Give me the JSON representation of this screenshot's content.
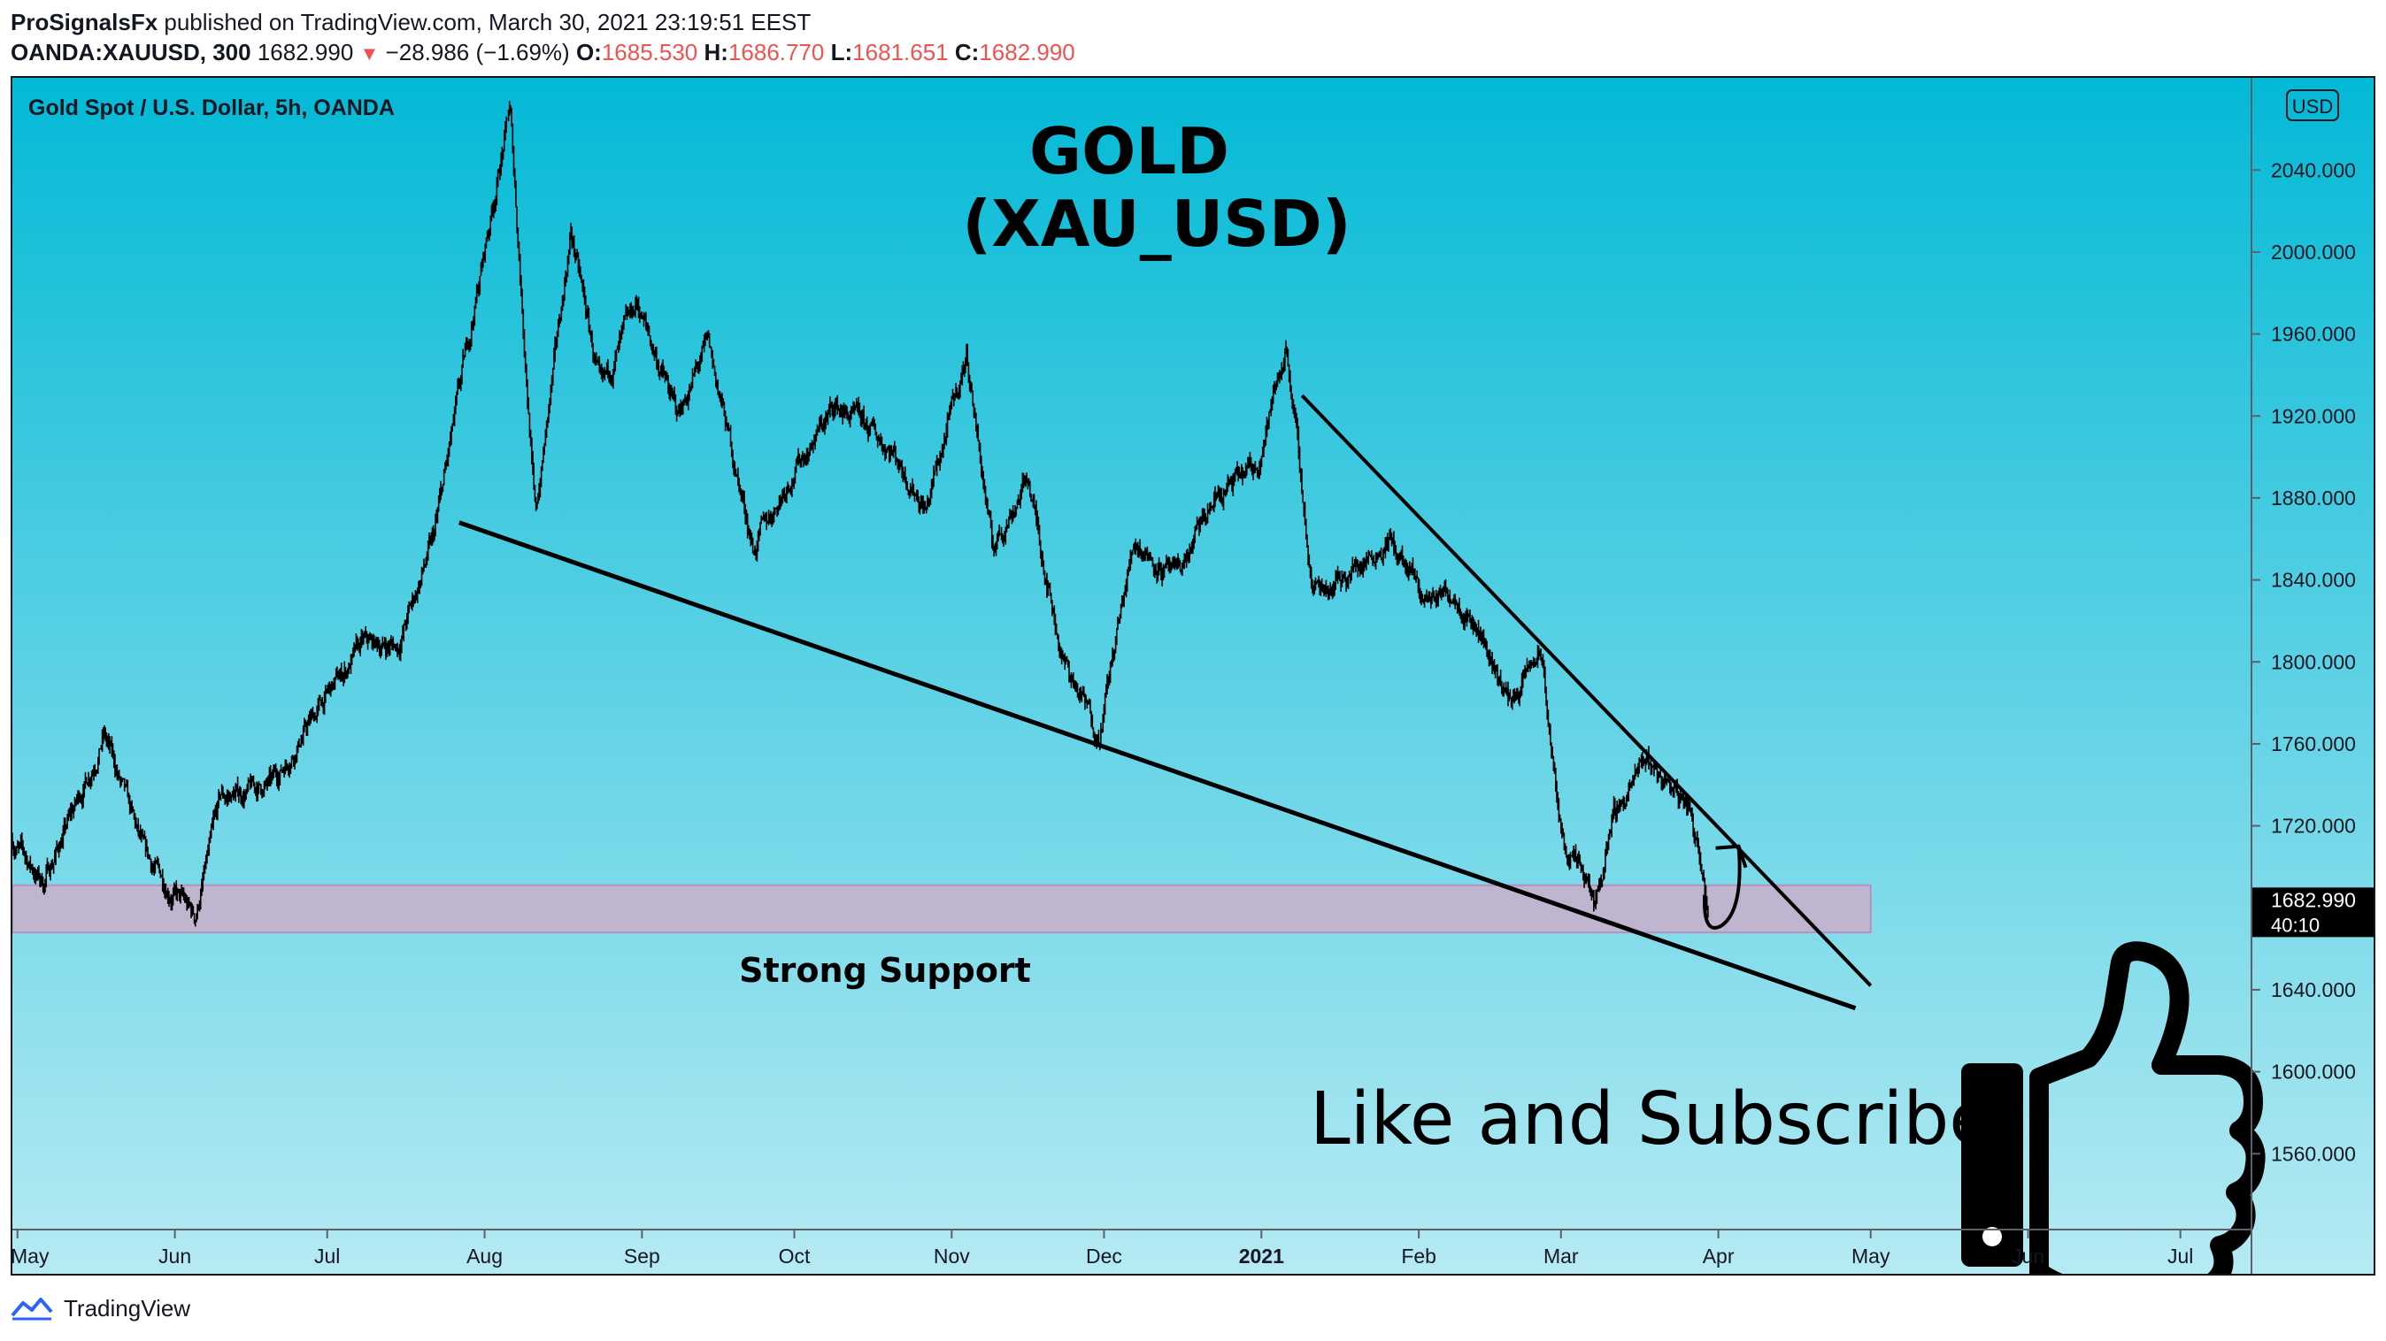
{
  "header": {
    "author": "ProSignalsFx",
    "published_text": "published on TradingView.com, March 30, 2021 23:19:51 EEST",
    "symbol": "OANDA:XAUUSD, 300",
    "last_price": "1682.990",
    "change": "−28.986 (−1.69%)",
    "o_label": "O:",
    "o_value": "1685.530",
    "h_label": "H:",
    "h_value": "1686.770",
    "l_label": "L:",
    "l_value": "1681.651",
    "c_label": "C:",
    "c_value": "1682.990"
  },
  "footer": {
    "brand": "TradingView"
  },
  "colors": {
    "bg_top": "#03b9d6",
    "bg_bottom": "#b6eaf3",
    "support_zone": "#c6b0cc",
    "candles": "#000000",
    "price_label_bg": "#000000",
    "up": "#26a69a",
    "down": "#ef5350"
  },
  "chart_data": {
    "type": "candlestick",
    "symbol_label": "Gold Spot / U.S. Dollar, 5h, OANDA",
    "title_line1": "GOLD",
    "title_line2": "(XAU_USD)",
    "currency_badge": "USD",
    "y_ticks": [
      "2040.000",
      "2000.000",
      "1960.000",
      "1920.000",
      "1880.000",
      "1840.000",
      "1800.000",
      "1760.000",
      "1720.000",
      "1640.000",
      "1600.000",
      "1560.000"
    ],
    "y_tick_values": [
      2040,
      2000,
      1960,
      1920,
      1880,
      1840,
      1800,
      1760,
      1720,
      1640,
      1600,
      1560
    ],
    "ylim": [
      1523,
      2085
    ],
    "x_ticks": [
      "May",
      "Jun",
      "Jul",
      "Aug",
      "Sep",
      "Oct",
      "Nov",
      "Dec",
      "2021",
      "Feb",
      "Mar",
      "Apr",
      "May",
      "Jun",
      "Jul"
    ],
    "x_tick_dates": [
      "2020-05-01",
      "2020-06-01",
      "2020-07-01",
      "2020-08-01",
      "2020-09-01",
      "2020-10-01",
      "2020-11-01",
      "2020-12-01",
      "2021-01-01",
      "2021-02-01",
      "2021-03-01",
      "2021-04-01",
      "2021-05-01",
      "2021-06-01",
      "2021-07-01"
    ],
    "xlim": [
      "2020-04-30",
      "2021-07-15"
    ],
    "current_price": "1682.990",
    "countdown": "40:10",
    "price_path": [
      [
        "2020-04-30",
        1713
      ],
      [
        "2020-05-06",
        1692
      ],
      [
        "2020-05-15",
        1745
      ],
      [
        "2020-05-18",
        1765
      ],
      [
        "2020-05-26",
        1705
      ],
      [
        "2020-06-05",
        1675
      ],
      [
        "2020-06-10",
        1733
      ],
      [
        "2020-06-20",
        1740
      ],
      [
        "2020-06-30",
        1780
      ],
      [
        "2020-07-08",
        1808
      ],
      [
        "2020-07-15",
        1808
      ],
      [
        "2020-07-22",
        1860
      ],
      [
        "2020-07-28",
        1945
      ],
      [
        "2020-08-06",
        2070
      ],
      [
        "2020-08-11",
        1870
      ],
      [
        "2020-08-18",
        2010
      ],
      [
        "2020-08-24",
        1930
      ],
      [
        "2020-08-31",
        1975
      ],
      [
        "2020-09-08",
        1920
      ],
      [
        "2020-09-14",
        1955
      ],
      [
        "2020-09-23",
        1855
      ],
      [
        "2020-09-30",
        1890
      ],
      [
        "2020-10-09",
        1925
      ],
      [
        "2020-10-20",
        1905
      ],
      [
        "2020-10-27",
        1875
      ],
      [
        "2020-11-04",
        1950
      ],
      [
        "2020-11-09",
        1855
      ],
      [
        "2020-11-16",
        1890
      ],
      [
        "2020-11-23",
        1800
      ],
      [
        "2020-11-30",
        1765
      ],
      [
        "2020-12-07",
        1860
      ],
      [
        "2020-12-15",
        1840
      ],
      [
        "2020-12-23",
        1880
      ],
      [
        "2020-12-31",
        1895
      ],
      [
        "2021-01-06",
        1955
      ],
      [
        "2021-01-11",
        1835
      ],
      [
        "2021-01-19",
        1845
      ],
      [
        "2021-01-26",
        1860
      ],
      [
        "2021-02-02",
        1830
      ],
      [
        "2021-02-08",
        1835
      ],
      [
        "2021-02-12",
        1820
      ],
      [
        "2021-02-19",
        1780
      ],
      [
        "2021-02-25",
        1805
      ],
      [
        "2021-03-01",
        1715
      ],
      [
        "2021-03-08",
        1680
      ],
      [
        "2021-03-11",
        1725
      ],
      [
        "2021-03-18",
        1752
      ],
      [
        "2021-03-26",
        1730
      ],
      [
        "2021-03-29",
        1700
      ],
      [
        "2021-03-30",
        1683
      ]
    ],
    "support_zone": {
      "low": 1668,
      "high": 1691,
      "from": "2020-04-30",
      "to": "2021-05-01",
      "label": "Strong Support"
    },
    "trendlines": [
      {
        "from": [
          "2020-07-27",
          1868
        ],
        "to": [
          "2021-04-28",
          1631
        ]
      },
      {
        "from": [
          "2021-01-09",
          1930
        ],
        "to": [
          "2021-05-01",
          1642
        ]
      }
    ],
    "projection_arrow": {
      "from": [
        "2021-03-30",
        1669
      ],
      "to": [
        "2021-04-05",
        1710
      ]
    },
    "cta_text": "Like and Subscribe",
    "cta_icon": "thumbs-up-icon"
  }
}
